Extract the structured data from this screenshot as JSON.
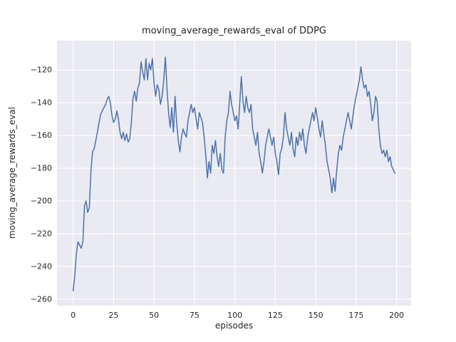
{
  "chart_data": {
    "type": "line",
    "title": "moving_average_rewards_eval of DDPG",
    "xlabel": "episodes",
    "ylabel": "moving_average_rewards_eval",
    "x_start": 0,
    "x_step": 1,
    "y": [
      -255,
      -245,
      -232,
      -225,
      -227,
      -229,
      -225,
      -203,
      -200,
      -207,
      -204,
      -181,
      -170,
      -168,
      -163,
      -158,
      -152,
      -147,
      -145,
      -143,
      -141,
      -138,
      -136,
      -140,
      -148,
      -152,
      -150,
      -145,
      -150,
      -158,
      -162,
      -158,
      -163,
      -159,
      -164,
      -162,
      -152,
      -137,
      -133,
      -139,
      -131,
      -128,
      -115,
      -121,
      -126,
      -113,
      -126,
      -116,
      -120,
      -113,
      -128,
      -136,
      -129,
      -132,
      -141,
      -136,
      -126,
      -112,
      -131,
      -146,
      -155,
      -143,
      -158,
      -136,
      -152,
      -163,
      -170,
      -161,
      -156,
      -159,
      -161,
      -151,
      -146,
      -141,
      -146,
      -143,
      -150,
      -156,
      -146,
      -149,
      -152,
      -161,
      -172,
      -186,
      -176,
      -183,
      -166,
      -171,
      -163,
      -173,
      -179,
      -171,
      -181,
      -183,
      -161,
      -151,
      -146,
      -133,
      -141,
      -146,
      -151,
      -148,
      -156,
      -141,
      -124,
      -139,
      -146,
      -136,
      -143,
      -146,
      -141,
      -156,
      -161,
      -166,
      -158,
      -171,
      -176,
      -183,
      -176,
      -166,
      -161,
      -156,
      -161,
      -166,
      -161,
      -171,
      -176,
      -184,
      -171,
      -168,
      -161,
      -146,
      -156,
      -161,
      -166,
      -158,
      -168,
      -173,
      -161,
      -166,
      -158,
      -163,
      -156,
      -166,
      -171,
      -161,
      -156,
      -151,
      -146,
      -151,
      -143,
      -149,
      -156,
      -161,
      -151,
      -159,
      -166,
      -176,
      -181,
      -186,
      -195,
      -186,
      -194,
      -181,
      -171,
      -166,
      -169,
      -161,
      -156,
      -151,
      -146,
      -151,
      -156,
      -148,
      -141,
      -136,
      -131,
      -126,
      -118,
      -126,
      -131,
      -129,
      -136,
      -133,
      -141,
      -151,
      -146,
      -136,
      -139,
      -156,
      -166,
      -171,
      -169,
      -173,
      -169,
      -176,
      -173,
      -179,
      -181,
      -183
    ],
    "xticks": [
      0,
      25,
      50,
      75,
      100,
      125,
      150,
      175,
      200
    ],
    "yticks": [
      -260,
      -240,
      -220,
      -200,
      -180,
      -160,
      -140,
      -120
    ],
    "xlim": [
      -10,
      209
    ],
    "ylim": [
      -264,
      -102
    ],
    "grid": true,
    "legend_position": "none",
    "line_color": "#4c72b0",
    "plot_bg": "#eaeaf2",
    "grid_color": "#ffffff",
    "text_color": "#262626",
    "line_width": 1.5
  }
}
